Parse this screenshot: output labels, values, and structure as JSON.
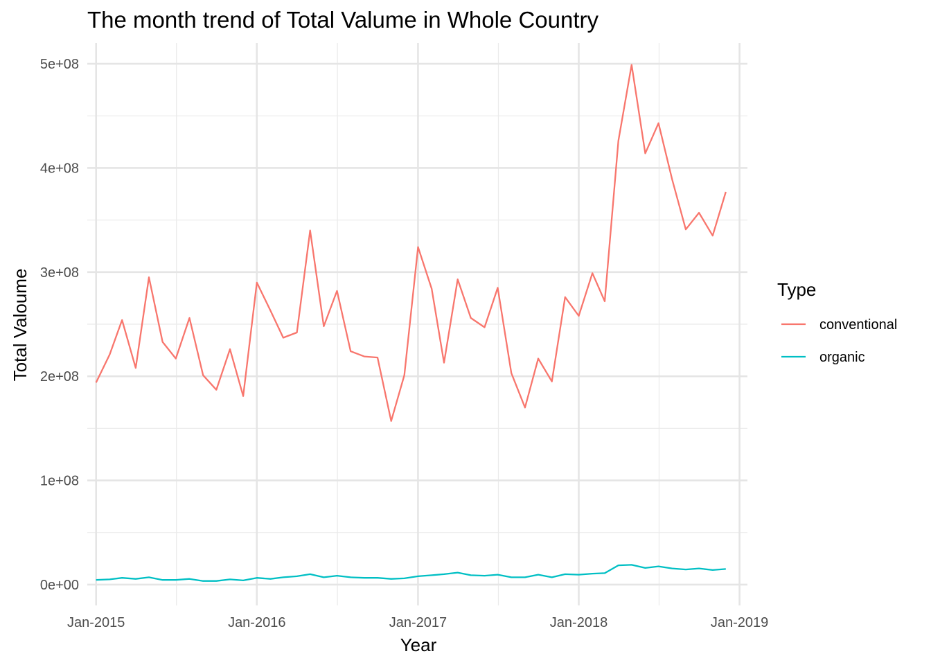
{
  "chart_data": {
    "type": "line",
    "title": "The month trend of Total Valume in Whole Country",
    "xlabel": "Year",
    "ylabel": "Total Valoume",
    "legend_title": "Type",
    "legend_position": "right",
    "grid": true,
    "x_range": [
      "2014-12-12",
      "2019-01-19"
    ],
    "ylim": [
      -20000000,
      520000000
    ],
    "x_ticks": [
      {
        "date": "2015-01-01",
        "label": "Jan-2015"
      },
      {
        "date": "2016-01-01",
        "label": "Jan-2016"
      },
      {
        "date": "2017-01-01",
        "label": "Jan-2017"
      },
      {
        "date": "2018-01-01",
        "label": "Jan-2018"
      },
      {
        "date": "2019-01-01",
        "label": "Jan-2019"
      }
    ],
    "y_ticks": [
      {
        "value": 0,
        "label": "0e+00"
      },
      {
        "value": 100000000,
        "label": "1e+08"
      },
      {
        "value": 200000000,
        "label": "2e+08"
      },
      {
        "value": 300000000,
        "label": "3e+08"
      },
      {
        "value": 400000000,
        "label": "4e+08"
      },
      {
        "value": 500000000,
        "label": "5e+08"
      }
    ],
    "x": [
      "2015-01",
      "2015-02",
      "2015-03",
      "2015-04",
      "2015-05",
      "2015-06",
      "2015-07",
      "2015-08",
      "2015-09",
      "2015-10",
      "2015-11",
      "2015-12",
      "2016-01",
      "2016-02",
      "2016-03",
      "2016-04",
      "2016-05",
      "2016-06",
      "2016-07",
      "2016-08",
      "2016-09",
      "2016-10",
      "2016-11",
      "2016-12",
      "2017-01",
      "2017-02",
      "2017-03",
      "2017-04",
      "2017-05",
      "2017-06",
      "2017-07",
      "2017-08",
      "2017-09",
      "2017-10",
      "2017-11",
      "2017-12",
      "2018-01",
      "2018-02",
      "2018-03",
      "2018-04",
      "2018-05",
      "2018-06",
      "2018-07",
      "2018-08",
      "2018-09",
      "2018-10",
      "2018-11",
      "2018-12"
    ],
    "series": [
      {
        "name": "conventional",
        "color": "#F8766D",
        "values": [
          194000000,
          221000000,
          254000000,
          208000000,
          295000000,
          233000000,
          217000000,
          256000000,
          201000000,
          187000000,
          226000000,
          181000000,
          290000000,
          263000000,
          237000000,
          242000000,
          340000000,
          248000000,
          282000000,
          224000000,
          219000000,
          218000000,
          157000000,
          201000000,
          324000000,
          284000000,
          213000000,
          293000000,
          256000000,
          247000000,
          285000000,
          203000000,
          170000000,
          217000000,
          195000000,
          276000000,
          258000000,
          299000000,
          272000000,
          426000000,
          499000000,
          414000000,
          443000000,
          389000000,
          341000000,
          357000000,
          335000000,
          377000000
        ]
      },
      {
        "name": "organic",
        "color": "#00BFC4",
        "values": [
          4500000,
          5000000,
          6500000,
          5500000,
          7000000,
          4500000,
          4500000,
          5500000,
          3500000,
          3500000,
          5000000,
          4000000,
          6500000,
          5500000,
          7000000,
          8000000,
          10000000,
          7000000,
          8500000,
          7000000,
          6500000,
          6500000,
          5500000,
          6000000,
          8000000,
          9000000,
          10000000,
          11500000,
          9000000,
          8500000,
          9500000,
          7000000,
          7000000,
          9500000,
          7000000,
          10000000,
          9500000,
          10500000,
          11000000,
          18500000,
          19000000,
          16000000,
          17500000,
          15500000,
          14500000,
          15500000,
          14000000,
          15000000
        ]
      }
    ]
  }
}
